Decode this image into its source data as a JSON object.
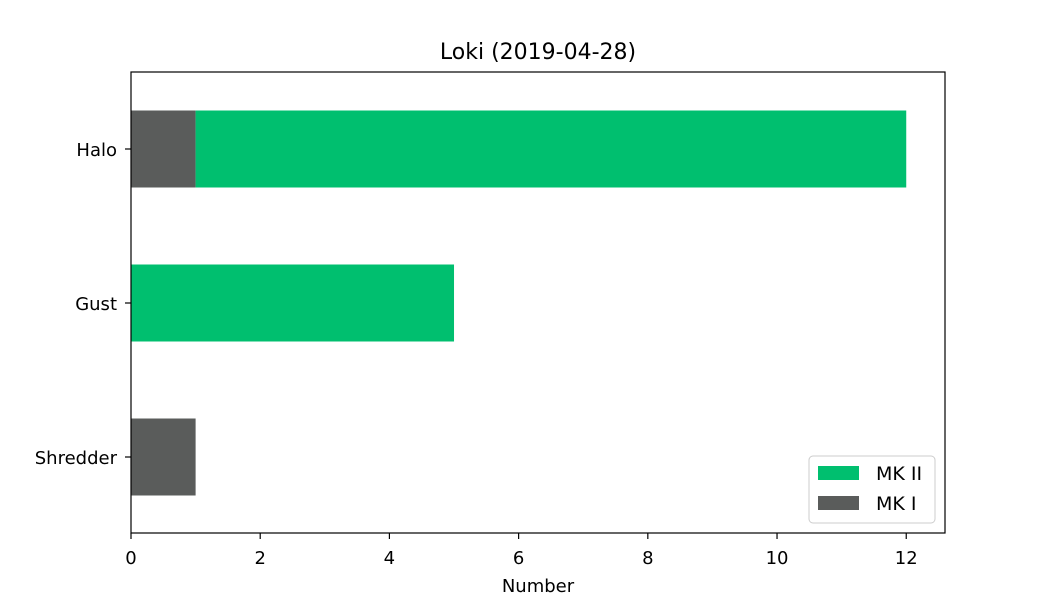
{
  "chart_data": {
    "type": "bar",
    "orientation": "horizontal",
    "stacked": true,
    "title": "Loki (2019-04-28)",
    "xlabel": "Number",
    "ylabel": "",
    "categories": [
      "Halo",
      "Gust",
      "Shredder"
    ],
    "series": [
      {
        "name": "MK I",
        "values": [
          1,
          0,
          1
        ],
        "color": "#5a5c5b"
      },
      {
        "name": "MK II",
        "values": [
          11,
          5,
          0
        ],
        "color": "#00bf6f"
      }
    ],
    "xlim": [
      0,
      12.6
    ],
    "xticks": [
      0,
      2,
      4,
      6,
      8,
      10,
      12
    ],
    "grid": false,
    "legend": {
      "placement": "lower-right",
      "order": [
        "MK II",
        "MK I"
      ]
    }
  }
}
